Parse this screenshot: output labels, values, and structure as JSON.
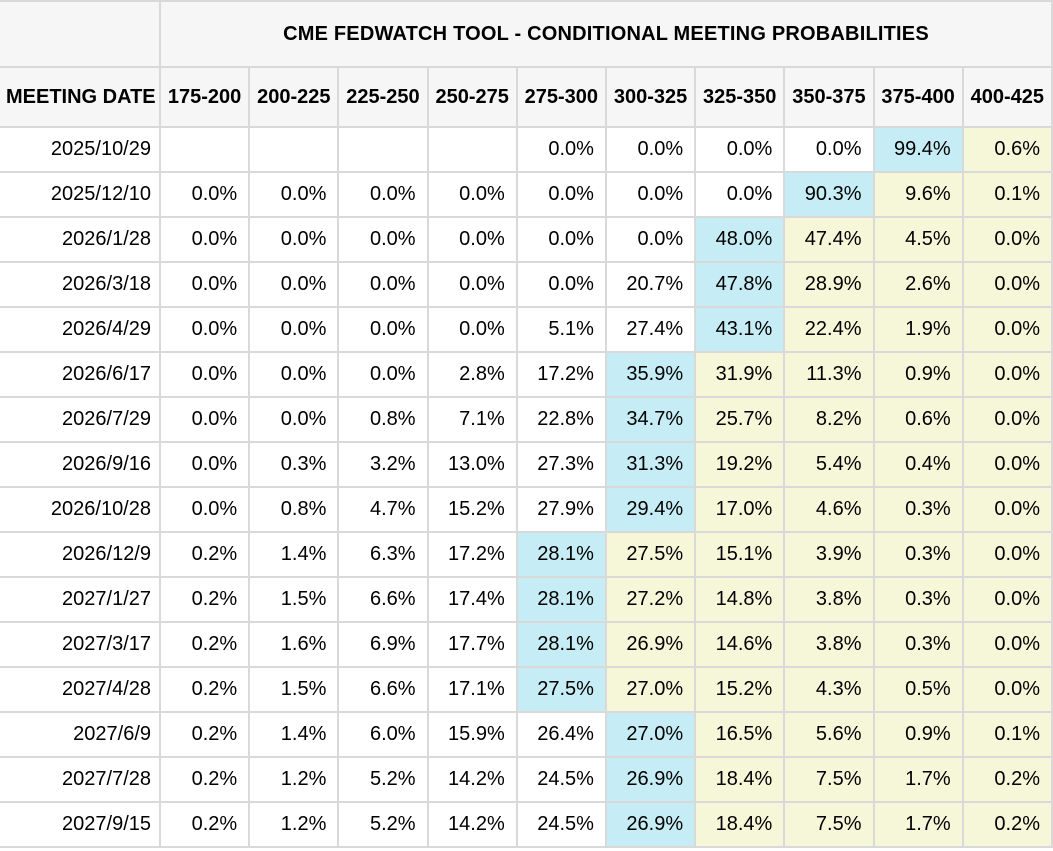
{
  "colors": {
    "highlight_current_path": "#c6edf5",
    "highlight_tail": "#f6f6d9",
    "header_band": "#f6f6f6",
    "grid_line": "#d9d9d9",
    "text": "#000000"
  },
  "chart_data": {
    "type": "table",
    "title": "CME FEDWATCH TOOL - CONDITIONAL MEETING PROBABILITIES",
    "row_header": "MEETING DATE",
    "columns": [
      "175-200",
      "200-225",
      "225-250",
      "250-275",
      "275-300",
      "300-325",
      "325-350",
      "350-375",
      "375-400",
      "400-425"
    ],
    "rows": [
      {
        "date": "2025/10/29",
        "values": [
          "",
          "",
          "",
          "",
          "0.0%",
          "0.0%",
          "0.0%",
          "0.0%",
          "99.4%",
          "0.6%"
        ],
        "styles": [
          "",
          "",
          "",
          "",
          "",
          "",
          "",
          "",
          "cyan",
          "yellow"
        ]
      },
      {
        "date": "2025/12/10",
        "values": [
          "0.0%",
          "0.0%",
          "0.0%",
          "0.0%",
          "0.0%",
          "0.0%",
          "0.0%",
          "90.3%",
          "9.6%",
          "0.1%"
        ],
        "styles": [
          "",
          "",
          "",
          "",
          "",
          "",
          "",
          "cyan",
          "yellow",
          "yellow"
        ]
      },
      {
        "date": "2026/1/28",
        "values": [
          "0.0%",
          "0.0%",
          "0.0%",
          "0.0%",
          "0.0%",
          "0.0%",
          "48.0%",
          "47.4%",
          "4.5%",
          "0.0%"
        ],
        "styles": [
          "",
          "",
          "",
          "",
          "",
          "",
          "cyan",
          "yellow",
          "yellow",
          "yellow"
        ]
      },
      {
        "date": "2026/3/18",
        "values": [
          "0.0%",
          "0.0%",
          "0.0%",
          "0.0%",
          "0.0%",
          "20.7%",
          "47.8%",
          "28.9%",
          "2.6%",
          "0.0%"
        ],
        "styles": [
          "",
          "",
          "",
          "",
          "",
          "",
          "cyan",
          "yellow",
          "yellow",
          "yellow"
        ]
      },
      {
        "date": "2026/4/29",
        "values": [
          "0.0%",
          "0.0%",
          "0.0%",
          "0.0%",
          "5.1%",
          "27.4%",
          "43.1%",
          "22.4%",
          "1.9%",
          "0.0%"
        ],
        "styles": [
          "",
          "",
          "",
          "",
          "",
          "",
          "cyan",
          "yellow",
          "yellow",
          "yellow"
        ]
      },
      {
        "date": "2026/6/17",
        "values": [
          "0.0%",
          "0.0%",
          "0.0%",
          "2.8%",
          "17.2%",
          "35.9%",
          "31.9%",
          "11.3%",
          "0.9%",
          "0.0%"
        ],
        "styles": [
          "",
          "",
          "",
          "",
          "",
          "cyan",
          "yellow",
          "yellow",
          "yellow",
          "yellow"
        ]
      },
      {
        "date": "2026/7/29",
        "values": [
          "0.0%",
          "0.0%",
          "0.8%",
          "7.1%",
          "22.8%",
          "34.7%",
          "25.7%",
          "8.2%",
          "0.6%",
          "0.0%"
        ],
        "styles": [
          "",
          "",
          "",
          "",
          "",
          "cyan",
          "yellow",
          "yellow",
          "yellow",
          "yellow"
        ]
      },
      {
        "date": "2026/9/16",
        "values": [
          "0.0%",
          "0.3%",
          "3.2%",
          "13.0%",
          "27.3%",
          "31.3%",
          "19.2%",
          "5.4%",
          "0.4%",
          "0.0%"
        ],
        "styles": [
          "",
          "",
          "",
          "",
          "",
          "cyan",
          "yellow",
          "yellow",
          "yellow",
          "yellow"
        ]
      },
      {
        "date": "2026/10/28",
        "values": [
          "0.0%",
          "0.8%",
          "4.7%",
          "15.2%",
          "27.9%",
          "29.4%",
          "17.0%",
          "4.6%",
          "0.3%",
          "0.0%"
        ],
        "styles": [
          "",
          "",
          "",
          "",
          "",
          "cyan",
          "yellow",
          "yellow",
          "yellow",
          "yellow"
        ]
      },
      {
        "date": "2026/12/9",
        "values": [
          "0.2%",
          "1.4%",
          "6.3%",
          "17.2%",
          "28.1%",
          "27.5%",
          "15.1%",
          "3.9%",
          "0.3%",
          "0.0%"
        ],
        "styles": [
          "",
          "",
          "",
          "",
          "cyan",
          "yellow",
          "yellow",
          "yellow",
          "yellow",
          "yellow"
        ]
      },
      {
        "date": "2027/1/27",
        "values": [
          "0.2%",
          "1.5%",
          "6.6%",
          "17.4%",
          "28.1%",
          "27.2%",
          "14.8%",
          "3.8%",
          "0.3%",
          "0.0%"
        ],
        "styles": [
          "",
          "",
          "",
          "",
          "cyan",
          "yellow",
          "yellow",
          "yellow",
          "yellow",
          "yellow"
        ]
      },
      {
        "date": "2027/3/17",
        "values": [
          "0.2%",
          "1.6%",
          "6.9%",
          "17.7%",
          "28.1%",
          "26.9%",
          "14.6%",
          "3.8%",
          "0.3%",
          "0.0%"
        ],
        "styles": [
          "",
          "",
          "",
          "",
          "cyan",
          "yellow",
          "yellow",
          "yellow",
          "yellow",
          "yellow"
        ]
      },
      {
        "date": "2027/4/28",
        "values": [
          "0.2%",
          "1.5%",
          "6.6%",
          "17.1%",
          "27.5%",
          "27.0%",
          "15.2%",
          "4.3%",
          "0.5%",
          "0.0%"
        ],
        "styles": [
          "",
          "",
          "",
          "",
          "cyan",
          "yellow",
          "yellow",
          "yellow",
          "yellow",
          "yellow"
        ]
      },
      {
        "date": "2027/6/9",
        "values": [
          "0.2%",
          "1.4%",
          "6.0%",
          "15.9%",
          "26.4%",
          "27.0%",
          "16.5%",
          "5.6%",
          "0.9%",
          "0.1%"
        ],
        "styles": [
          "",
          "",
          "",
          "",
          "",
          "cyan",
          "yellow",
          "yellow",
          "yellow",
          "yellow"
        ]
      },
      {
        "date": "2027/7/28",
        "values": [
          "0.2%",
          "1.2%",
          "5.2%",
          "14.2%",
          "24.5%",
          "26.9%",
          "18.4%",
          "7.5%",
          "1.7%",
          "0.2%"
        ],
        "styles": [
          "",
          "",
          "",
          "",
          "",
          "cyan",
          "yellow",
          "yellow",
          "yellow",
          "yellow"
        ]
      },
      {
        "date": "2027/9/15",
        "values": [
          "0.2%",
          "1.2%",
          "5.2%",
          "14.2%",
          "24.5%",
          "26.9%",
          "18.4%",
          "7.5%",
          "1.7%",
          "0.2%"
        ],
        "styles": [
          "",
          "",
          "",
          "",
          "",
          "cyan",
          "yellow",
          "yellow",
          "yellow",
          "yellow"
        ]
      }
    ]
  }
}
